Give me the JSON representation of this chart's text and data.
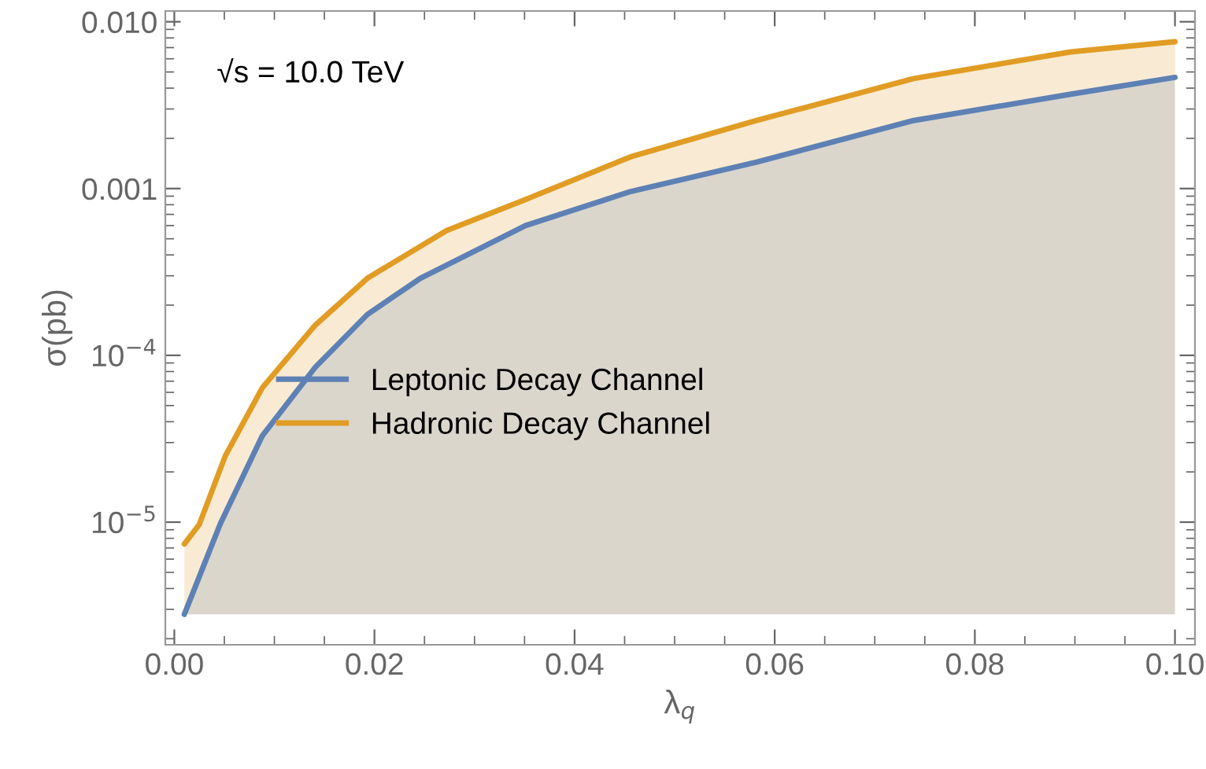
{
  "chart_data": {
    "type": "area",
    "xlabel": "λ$_{q}$",
    "ylabel": "σ(pb)",
    "log": "y",
    "legend": "center",
    "grid": false,
    "annotations": [
      "√s = 10.0 TeV"
    ],
    "xlim": [
      -0.0009,
      0.102
    ],
    "xticks": [
      {
        "value": 0,
        "label": "0.00"
      },
      0.02,
      0.04,
      0.06,
      0.08,
      {
        "value": 0.1,
        "label": "0.10"
      }
    ],
    "ylim": [
      1.84e-06,
      0.0116
    ],
    "yticks": [
      {
        "value": 0.01,
        "label": "0.010"
      },
      0.001,
      {
        "value": 0.0001,
        "label": "10$^{−4}$"
      },
      {
        "value": 1e-05,
        "label": "10$^{−5}$"
      }
    ],
    "series": [
      {
        "name": "Hadronic Decay Channel",
        "color": "#e19c24",
        "x": [
          0.001,
          0.0025,
          0.0051,
          0.0088,
          0.0141,
          0.0193,
          0.0272,
          0.0351,
          0.0456,
          0.0582,
          0.0739,
          0.0896,
          0.1
        ],
        "values": [
          7.4e-06,
          9.7e-06,
          2.5e-05,
          6.4e-05,
          0.000152,
          0.00029,
          0.00056,
          0.00086,
          0.00155,
          0.00256,
          0.00457,
          0.0066,
          0.0076
        ]
      },
      {
        "name": "Leptonic Decay Channel",
        "color": "#5e81b5",
        "x": [
          0.001,
          0.0046,
          0.0088,
          0.0141,
          0.0193,
          0.0246,
          0.0351,
          0.0456,
          0.0582,
          0.0739,
          0.0896,
          0.1
        ],
        "values": [
          2.8e-06,
          9.8e-06,
          3.3e-05,
          8.5e-05,
          0.000176,
          0.00029,
          0.0006,
          0.00096,
          0.00144,
          0.00256,
          0.00368,
          0.00464
        ]
      }
    ]
  }
}
